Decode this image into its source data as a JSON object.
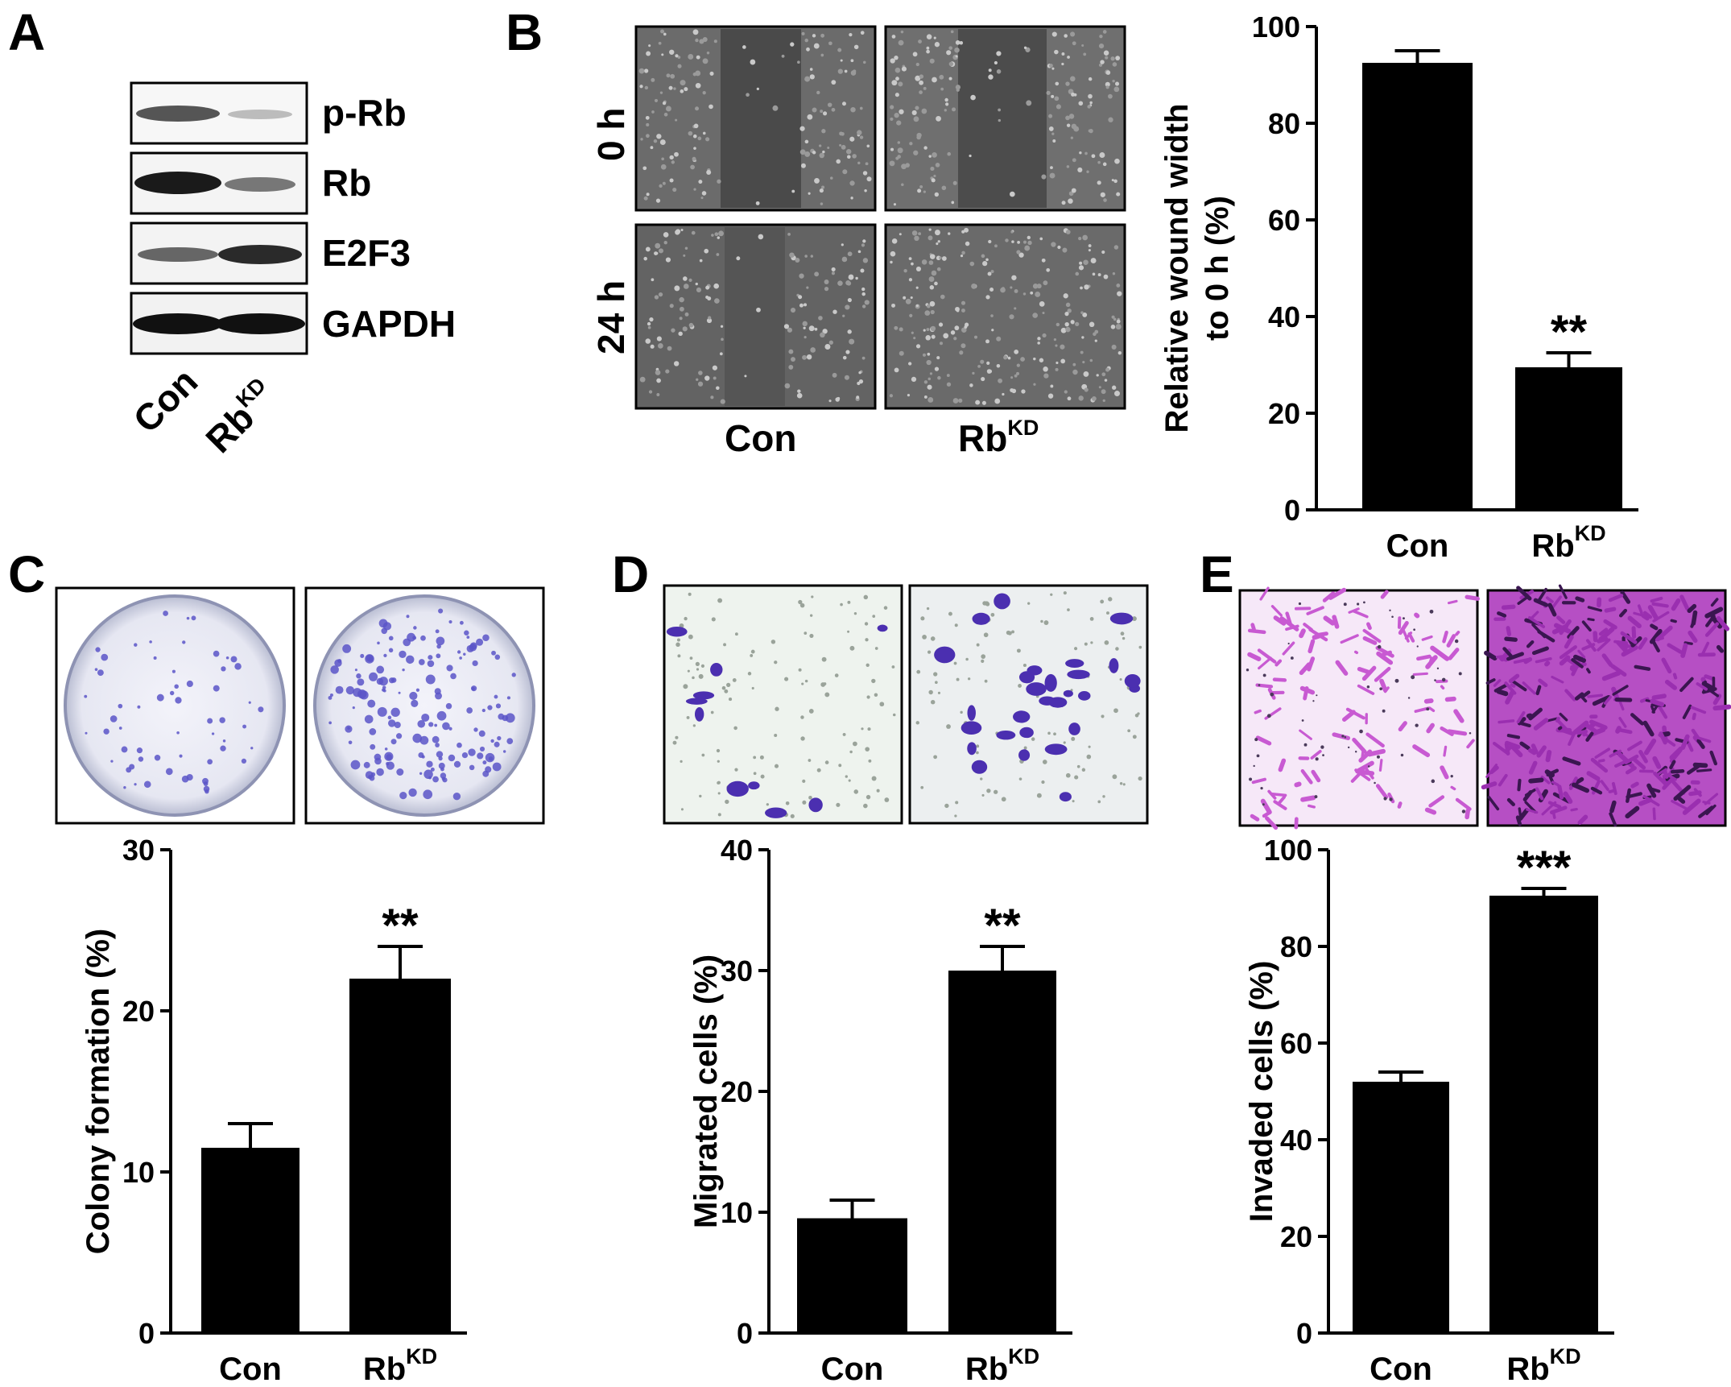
{
  "panels": {
    "A": {
      "label": "A",
      "blots": [
        "p-Rb",
        "Rb",
        "E2F3",
        "GAPDH"
      ],
      "lanes": [
        "Con",
        "Rb",
        "KD"
      ]
    },
    "B": {
      "label": "B",
      "rows": [
        "0 h",
        "24 h"
      ],
      "columns": [
        "Con",
        "Rb",
        "KD"
      ]
    },
    "C": {
      "label": "C"
    },
    "D": {
      "label": "D"
    },
    "E": {
      "label": "E"
    }
  },
  "colors": {
    "bar": "#000000",
    "micrograph_bg": "#5a5a5a",
    "colony_dots": "#5a55c8",
    "migration_bg": "#eef3ee",
    "migration_cells": "#4b2fb0",
    "invasion_bg": "#f4e4f6",
    "invasion_cells": "#c85ad2",
    "invasion_dense": "#9a2fb0"
  },
  "chart_data": [
    {
      "id": "B",
      "type": "bar",
      "categories": [
        {
          "main": "Con",
          "sup": ""
        },
        {
          "main": "Rb",
          "sup": "KD"
        }
      ],
      "values": [
        92.5,
        29.5
      ],
      "errors": [
        2.5,
        3.0
      ],
      "significance": [
        "",
        "**"
      ],
      "ylabel": "Relative wound width",
      "ylabel2": "to 0 h (%)",
      "ylim": [
        0,
        100
      ],
      "yticks": [
        0,
        20,
        40,
        60,
        80,
        100
      ]
    },
    {
      "id": "C",
      "type": "bar",
      "categories": [
        {
          "main": "Con",
          "sup": ""
        },
        {
          "main": "Rb",
          "sup": "KD"
        }
      ],
      "values": [
        11.5,
        22
      ],
      "errors": [
        1.5,
        2.0
      ],
      "significance": [
        "",
        "**"
      ],
      "ylabel": "Colony formation (%)",
      "ylabel2": "",
      "ylim": [
        0,
        30
      ],
      "yticks": [
        0,
        10,
        20,
        30
      ]
    },
    {
      "id": "D",
      "type": "bar",
      "categories": [
        {
          "main": "Con",
          "sup": ""
        },
        {
          "main": "Rb",
          "sup": "KD"
        }
      ],
      "values": [
        9.5,
        30
      ],
      "errors": [
        1.5,
        2.0
      ],
      "significance": [
        "",
        "**"
      ],
      "ylabel": "Migrated cells (%)",
      "ylabel2": "",
      "ylim": [
        0,
        40
      ],
      "yticks": [
        0,
        10,
        20,
        30,
        40
      ]
    },
    {
      "id": "E",
      "type": "bar",
      "categories": [
        {
          "main": "Con",
          "sup": ""
        },
        {
          "main": "Rb",
          "sup": "KD"
        }
      ],
      "values": [
        52,
        90.5
      ],
      "errors": [
        2.0,
        1.5
      ],
      "significance": [
        "",
        "***"
      ],
      "ylabel": "Invaded cells (%)",
      "ylabel2": "",
      "ylim": [
        0,
        100
      ],
      "yticks": [
        0,
        20,
        40,
        60,
        80,
        100
      ]
    }
  ]
}
